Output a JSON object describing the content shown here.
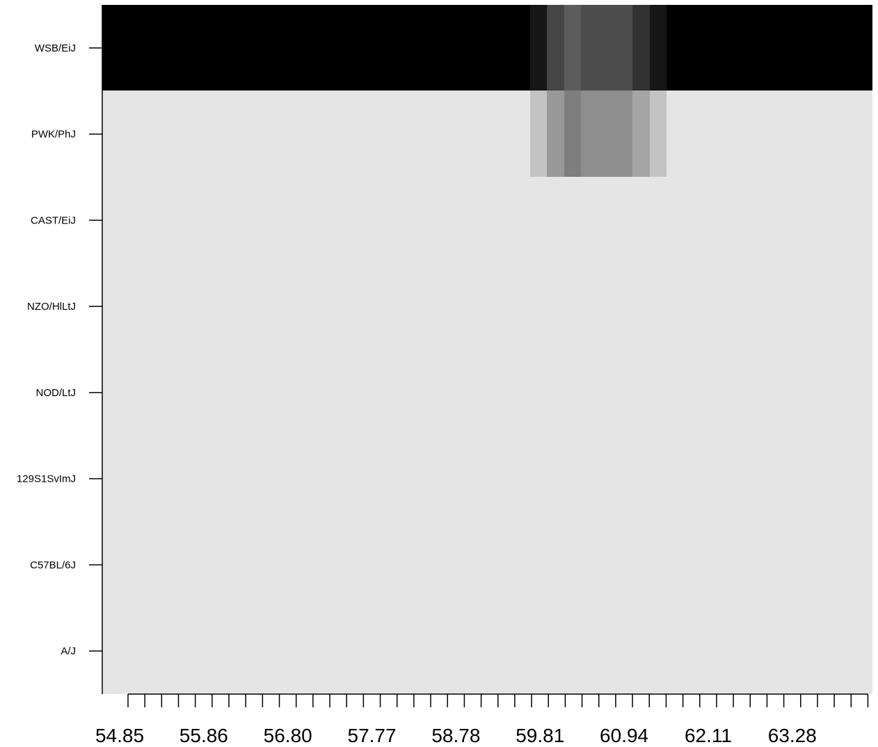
{
  "chart_data": {
    "type": "heatmap",
    "title": "",
    "xlabel": "",
    "ylabel": "",
    "strains": [
      "WSB/EiJ",
      "PWK/PhJ",
      "CAST/EiJ",
      "NZO/HlLtJ",
      "NOD/LtJ",
      "129S1SvImJ",
      "C57BL/6J",
      "A/J"
    ],
    "x_tick_labels": [
      "54.85",
      "55.86",
      "56.80",
      "57.77",
      "58.78",
      "59.81",
      "60.94",
      "62.11",
      "63.28"
    ],
    "x_tick_label_every": 5,
    "n_columns": 45,
    "scale": "0 = light grey (#e5e5e5), 1 = black",
    "default_values": [
      1,
      0,
      0,
      0,
      0,
      0,
      0,
      0
    ],
    "column_overrides": [
      {
        "column": 25,
        "values": [
          0.9,
          0.15,
          0,
          0,
          0,
          0,
          0,
          0
        ]
      },
      {
        "column": 26,
        "values": [
          0.7,
          0.33,
          0,
          0,
          0,
          0,
          0,
          0
        ]
      },
      {
        "column": 27,
        "values": [
          0.6,
          0.45,
          0,
          0,
          0,
          0,
          0,
          0
        ]
      },
      {
        "column": 28,
        "values": [
          0.67,
          0.38,
          0,
          0,
          0,
          0,
          0,
          0
        ]
      },
      {
        "column": 29,
        "values": [
          0.67,
          0.38,
          0,
          0,
          0,
          0,
          0,
          0
        ]
      },
      {
        "column": 30,
        "values": [
          0.67,
          0.38,
          0,
          0,
          0,
          0,
          0,
          0
        ]
      },
      {
        "column": 31,
        "values": [
          0.78,
          0.28,
          0,
          0,
          0,
          0,
          0,
          0
        ]
      },
      {
        "column": 32,
        "values": [
          0.9,
          0.15,
          0,
          0,
          0,
          0,
          0,
          0
        ]
      }
    ],
    "colors": {
      "low": "#e5e5e5",
      "high": "#000000",
      "axis": "#000000"
    }
  }
}
